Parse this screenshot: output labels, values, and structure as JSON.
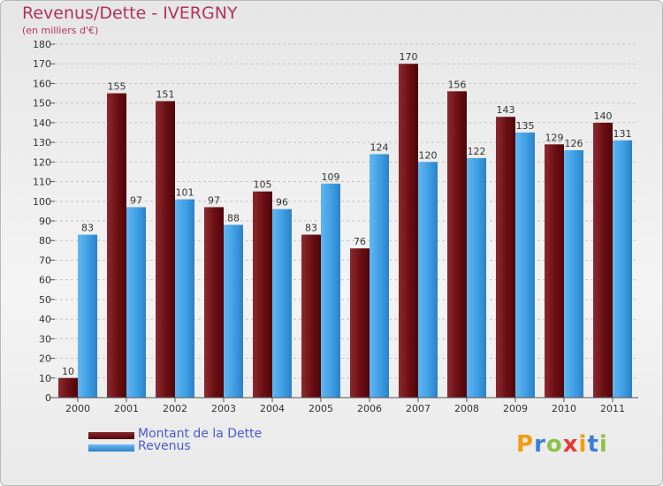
{
  "header": {
    "title": "Revenus/Dette - IVERGNY",
    "subtitle": "(en milliers d'€)"
  },
  "legend": {
    "items": [
      {
        "label": "Montant de la Dette",
        "color": "#6b0f14"
      },
      {
        "label": "Revenus",
        "color": "#3f9ee4"
      }
    ]
  },
  "logo": {
    "letters": [
      "P",
      "r",
      "o",
      "x",
      "i",
      "t",
      "i"
    ],
    "colors": [
      "#f39c12",
      "#3a7fd5",
      "#8bc34a",
      "#e53935",
      "#f39c12",
      "#3a7fd5",
      "#8bc34a"
    ]
  },
  "chart_data": {
    "type": "bar",
    "categories": [
      "2000",
      "2001",
      "2002",
      "2003",
      "2004",
      "2005",
      "2006",
      "2007",
      "2008",
      "2009",
      "2010",
      "2011"
    ],
    "series": [
      {
        "name": "Montant de la Dette",
        "color": "#6b0f14",
        "values": [
          10,
          155,
          151,
          97,
          105,
          83,
          76,
          170,
          156,
          143,
          129,
          140
        ]
      },
      {
        "name": "Revenus",
        "color": "#3f9ee4",
        "values": [
          83,
          97,
          101,
          88,
          96,
          109,
          124,
          120,
          122,
          135,
          126,
          131
        ]
      }
    ],
    "ylim": [
      0,
      180
    ],
    "ytick_step": 10,
    "grid": true
  }
}
